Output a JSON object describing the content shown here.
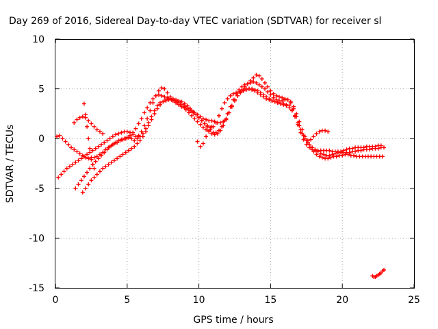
{
  "chart_data": {
    "type": "scatter",
    "title": "Day 269 of 2016, Sidereal Day-to-day VTEC variation (SDTVAR) for receiver sl",
    "xlabel": "GPS time / hours",
    "ylabel": "SDTVAR / TECUs",
    "xlim": [
      0,
      25
    ],
    "ylim": [
      -15,
      10
    ],
    "x_ticks": [
      "0",
      "5",
      "10",
      "15",
      "20",
      "25"
    ],
    "y_ticks": [
      "-15",
      "-10",
      "-5",
      "0",
      "5",
      "10"
    ],
    "grid": true,
    "marker": "plus",
    "color": "#ff0000",
    "series": [
      {
        "x": [
          0.1,
          0.3,
          0.5,
          0.7,
          0.9,
          1.1,
          1.3,
          1.5,
          1.7,
          1.9,
          2.1,
          2.3,
          2.5,
          2.7,
          2.9,
          3.1,
          3.3,
          3.5,
          3.7,
          3.9,
          4.1,
          4.3,
          4.5,
          4.7,
          4.9,
          5.1,
          5.3,
          5.5,
          5.7,
          5.9,
          6.1,
          6.3,
          6.5,
          6.7,
          6.9,
          7.1,
          7.3,
          7.5,
          7.7,
          7.9,
          8.1,
          8.3,
          8.5,
          8.7,
          8.9,
          9.1,
          9.3,
          9.5,
          9.7,
          9.9,
          10.1,
          10.3,
          10.5,
          10.7,
          10.9,
          11.1,
          11.3,
          11.5,
          11.7,
          11.9,
          12.1,
          12.3,
          12.5,
          12.7,
          12.9,
          13.1,
          13.3,
          13.5,
          13.7,
          13.9,
          14.1,
          14.3,
          14.5,
          14.7,
          14.9,
          15.1,
          15.3,
          15.5,
          15.7,
          15.9,
          16.1,
          16.3,
          16.5,
          16.7,
          16.9,
          17.1,
          17.3,
          17.5,
          17.7,
          17.9,
          18.1,
          18.3,
          18.5,
          18.7,
          18.9,
          19.1,
          19.3,
          19.5,
          19.7,
          19.9,
          20.1,
          20.3,
          20.5,
          20.7,
          20.9,
          21.1,
          21.3,
          21.5,
          21.7,
          21.9,
          22.1,
          22.3,
          22.5,
          22.7,
          22.9
        ],
        "y": [
          0.2,
          0.3,
          0.0,
          -0.3,
          -0.6,
          -0.9,
          -1.1,
          -1.3,
          -1.5,
          -1.7,
          -1.9,
          -2.0,
          -2.1,
          -1.9,
          -1.8,
          -1.6,
          -1.4,
          -1.1,
          -0.9,
          -0.7,
          -0.5,
          -0.4,
          -0.2,
          -0.1,
          0.0,
          0.1,
          0.0,
          -0.2,
          0.0,
          0.2,
          0.5,
          1.0,
          1.6,
          2.2,
          2.8,
          3.3,
          3.6,
          3.7,
          3.8,
          3.9,
          3.9,
          3.8,
          3.7,
          3.6,
          3.4,
          3.2,
          3.0,
          2.8,
          2.6,
          2.4,
          2.2,
          2.0,
          1.9,
          1.8,
          1.8,
          1.7,
          1.6,
          1.6,
          1.7,
          2.0,
          2.6,
          3.2,
          3.8,
          4.3,
          4.7,
          4.9,
          5.0,
          5.0,
          4.9,
          4.8,
          4.6,
          4.4,
          4.2,
          4.0,
          3.9,
          3.8,
          3.7,
          3.6,
          3.5,
          3.5,
          3.4,
          3.3,
          2.9,
          2.2,
          1.4,
          0.6,
          -0.1,
          -0.6,
          -0.9,
          -1.1,
          -1.2,
          -1.2,
          -1.2,
          -1.2,
          -1.2,
          -1.2,
          -1.3,
          -1.3,
          -1.3,
          -1.4,
          -1.4,
          -1.4,
          -1.4,
          -1.3,
          -1.3,
          -1.2,
          -1.2,
          -1.1,
          -1.1,
          -1.1,
          -1.0,
          -1.0,
          -1.0,
          -0.9,
          -0.9
        ]
      },
      {
        "x": [
          1.4,
          1.6,
          1.8,
          2.0,
          2.2,
          2.4,
          2.6,
          2.8,
          3.0,
          3.2,
          3.4,
          3.6,
          3.8,
          4.0,
          4.2,
          4.4,
          4.6,
          4.8,
          5.0,
          5.2,
          5.4,
          5.6,
          5.8,
          6.0,
          6.2,
          6.4,
          6.6,
          6.8,
          7.0,
          7.2,
          7.4,
          7.6,
          7.8,
          8.0,
          8.2,
          8.4,
          8.6,
          8.8,
          9.0,
          9.2,
          9.4,
          9.6,
          9.8,
          10.0,
          10.2,
          10.4,
          10.6,
          10.8,
          11.0,
          11.2,
          11.4,
          11.6,
          11.8,
          12.0,
          12.2,
          12.4,
          12.6,
          12.8,
          13.0,
          13.2,
          13.4,
          13.6,
          13.8,
          14.0,
          14.2,
          14.4,
          14.6,
          14.8,
          15.0,
          15.2,
          15.4,
          15.6,
          15.8,
          16.0,
          16.2,
          16.4,
          16.6,
          16.8,
          17.0,
          17.2,
          17.4,
          17.6,
          17.8,
          18.0,
          18.2,
          18.4,
          18.6,
          18.8,
          19.0,
          19.2,
          19.4,
          19.6,
          19.8,
          20.0,
          20.2,
          20.4,
          20.6,
          20.8,
          21.0,
          21.2,
          21.4,
          21.6,
          21.8,
          22.0,
          22.2,
          22.4,
          22.6,
          22.8
        ],
        "y": [
          -5.0,
          -4.6,
          -4.2,
          -3.8,
          -3.4,
          -3.0,
          -2.6,
          -2.3,
          -2.0,
          -1.7,
          -1.4,
          -1.1,
          -0.8,
          -0.6,
          -0.4,
          -0.2,
          -0.1,
          0.0,
          0.1,
          0.3,
          0.6,
          1.0,
          1.5,
          2.0,
          2.6,
          3.1,
          3.6,
          4.0,
          4.3,
          4.4,
          4.3,
          4.2,
          4.1,
          4.0,
          3.8,
          3.6,
          3.4,
          3.2,
          3.1,
          3.0,
          2.8,
          2.6,
          2.4,
          2.1,
          1.8,
          1.5,
          1.2,
          0.9,
          0.6,
          0.6,
          0.8,
          1.2,
          1.8,
          2.5,
          3.2,
          3.9,
          4.5,
          4.9,
          5.2,
          5.4,
          5.5,
          5.6,
          5.7,
          5.6,
          5.4,
          5.2,
          5.0,
          4.7,
          4.4,
          4.1,
          3.9,
          3.8,
          3.8,
          3.9,
          3.9,
          3.7,
          3.2,
          2.5,
          1.7,
          0.9,
          0.2,
          -0.4,
          -0.9,
          -1.3,
          -1.6,
          -1.8,
          -1.9,
          -2.0,
          -2.0,
          -1.9,
          -1.8,
          -1.8,
          -1.7,
          -1.7,
          -1.6,
          -1.6,
          -1.7,
          -1.7,
          -1.8,
          -1.8,
          -1.8,
          -1.8,
          -1.8,
          -1.8,
          -1.8,
          -1.8,
          -1.8,
          -1.8
        ]
      },
      {
        "x": [
          1.9,
          2.1,
          2.3,
          2.5,
          2.7,
          2.9,
          3.1,
          3.3,
          3.5,
          3.7,
          3.9,
          4.1,
          4.3,
          4.5,
          4.7,
          4.9,
          5.1,
          5.3,
          5.5,
          5.7,
          5.9,
          6.1,
          6.3,
          6.5,
          6.7,
          6.9,
          7.1,
          7.3,
          7.5,
          7.7,
          7.9,
          8.1,
          8.3,
          8.5,
          8.7,
          8.9,
          9.1,
          9.3,
          9.5,
          9.7,
          9.9,
          10.1,
          10.3,
          10.5,
          10.7,
          10.9,
          11.1,
          11.3,
          11.5,
          11.7,
          11.9,
          12.1,
          12.3,
          12.5,
          12.7,
          12.9,
          13.1,
          13.3,
          13.5,
          13.7,
          13.9,
          14.1,
          14.3,
          14.5,
          14.7,
          14.9,
          15.1,
          15.3,
          15.5,
          15.7,
          15.9,
          16.1,
          16.3,
          16.5,
          16.7,
          16.9,
          17.1,
          17.3,
          17.5,
          17.7,
          17.9,
          18.1,
          18.3,
          18.5,
          18.7,
          18.9,
          19.1,
          19.3,
          19.5,
          19.7,
          19.9,
          20.1,
          20.3,
          20.5,
          20.7,
          20.9,
          21.1,
          21.3,
          21.5,
          21.7,
          21.9,
          22.1,
          22.3,
          22.5,
          22.7
        ],
        "y": [
          -5.4,
          -5.0,
          -4.6,
          -4.2,
          -3.9,
          -3.6,
          -3.3,
          -3.0,
          -2.8,
          -2.6,
          -2.4,
          -2.2,
          -2.0,
          -1.8,
          -1.6,
          -1.4,
          -1.2,
          -1.0,
          -0.8,
          -0.5,
          -0.2,
          0.2,
          0.7,
          1.3,
          1.9,
          2.5,
          3.0,
          3.4,
          3.7,
          3.9,
          4.0,
          3.9,
          3.8,
          3.6,
          3.4,
          3.2,
          2.9,
          2.6,
          2.3,
          2.0,
          1.7,
          1.4,
          1.1,
          0.9,
          0.7,
          0.5,
          0.4,
          0.5,
          0.8,
          1.3,
          1.9,
          2.6,
          3.3,
          3.9,
          4.3,
          4.6,
          4.8,
          4.9,
          5.0,
          5.0,
          4.9,
          4.8,
          4.6,
          4.4,
          4.2,
          4.0,
          3.8,
          3.7,
          3.6,
          3.5,
          3.4,
          3.3,
          3.1,
          2.8,
          2.3,
          1.6,
          0.9,
          0.3,
          -0.2,
          -0.6,
          -0.9,
          -1.1,
          -1.3,
          -1.5,
          -1.6,
          -1.7,
          -1.7,
          -1.6,
          -1.5,
          -1.4,
          -1.3,
          -1.2,
          -1.1,
          -1.0,
          -1.0,
          -0.9,
          -0.9,
          -0.9,
          -0.9,
          -0.8,
          -0.8,
          -0.8,
          -0.8,
          -0.7,
          -0.7
        ]
      },
      {
        "x": [
          0.2,
          0.4,
          0.6,
          0.8,
          1.0,
          1.2,
          1.4,
          1.6,
          1.8,
          2.0,
          2.2,
          2.4,
          2.6,
          2.8,
          3.0,
          3.2,
          3.4,
          3.6,
          3.8,
          4.0,
          4.2,
          4.4,
          4.6,
          4.8,
          5.0,
          5.2,
          5.4,
          5.6,
          5.8,
          6.0,
          6.2,
          6.4,
          6.6,
          6.8,
          7.0,
          7.2,
          7.4,
          7.6,
          7.8,
          8.0,
          8.2,
          8.4,
          8.6,
          8.8,
          9.0,
          9.2,
          9.4,
          9.6,
          9.8,
          10.0,
          10.2,
          10.4,
          10.6,
          10.8,
          11.0,
          11.2,
          11.4,
          11.6,
          11.8,
          12.0,
          12.2,
          12.4,
          12.6,
          12.8,
          13.0,
          13.2,
          13.4,
          13.6,
          13.8,
          14.0,
          14.2,
          14.4,
          14.6,
          14.8,
          15.0,
          15.2,
          15.4,
          15.6,
          15.8,
          16.0,
          16.2,
          16.4,
          16.6,
          16.8,
          17.0,
          17.2,
          17.4,
          17.6,
          17.8,
          18.0,
          18.2,
          18.4,
          18.6,
          18.8,
          19.0
        ],
        "y": [
          -3.9,
          -3.6,
          -3.3,
          -3.0,
          -2.8,
          -2.6,
          -2.4,
          -2.2,
          -2.0,
          -1.8,
          -1.6,
          -1.4,
          -1.2,
          -1.0,
          -0.8,
          -0.6,
          -0.4,
          -0.2,
          0.0,
          0.2,
          0.4,
          0.5,
          0.6,
          0.7,
          0.7,
          0.6,
          0.4,
          0.2,
          0.3,
          0.7,
          1.3,
          2.0,
          2.8,
          3.6,
          4.3,
          4.8,
          5.1,
          5.0,
          4.6,
          4.2,
          4.0,
          3.9,
          3.8,
          3.7,
          3.5,
          3.3,
          3.0,
          2.7,
          2.4,
          2.1,
          1.8,
          1.5,
          1.3,
          1.1,
          1.2,
          1.6,
          2.3,
          3.0,
          3.6,
          4.0,
          4.3,
          4.5,
          4.6,
          4.7,
          4.9,
          5.2,
          5.5,
          5.8,
          6.1,
          6.4,
          6.3,
          6.0,
          5.6,
          5.2,
          4.8,
          4.5,
          4.3,
          4.2,
          4.1,
          4.0,
          3.9,
          3.6,
          3.0,
          2.2,
          1.3,
          0.5,
          0.0,
          -0.2,
          -0.1,
          0.2,
          0.5,
          0.7,
          0.8,
          0.8,
          0.7
        ]
      },
      {
        "x": [
          1.3,
          1.5,
          1.7,
          1.9,
          2.1,
          2.3,
          2.5,
          2.7,
          2.9,
          3.1,
          3.3
        ],
        "y": [
          1.6,
          1.9,
          2.1,
          2.2,
          2.1,
          1.8,
          1.5,
          1.2,
          0.9,
          0.7,
          0.5
        ]
      },
      {
        "x": [
          2.0,
          2.1,
          2.2,
          2.3,
          2.4,
          2.5,
          2.6,
          2.7
        ],
        "y": [
          3.5,
          2.4,
          1.2,
          0.0,
          -1.0,
          -1.9,
          -2.6,
          -3.0
        ]
      },
      {
        "x": [
          9.9,
          10.1,
          10.3,
          10.5,
          10.7,
          10.9
        ],
        "y": [
          -0.3,
          -0.8,
          -0.5,
          0.2,
          0.8,
          1.2
        ]
      },
      {
        "x": [
          22.1,
          22.2,
          22.3,
          22.4,
          22.5,
          22.6,
          22.7,
          22.8,
          22.9
        ],
        "y": [
          -13.8,
          -13.9,
          -13.9,
          -13.8,
          -13.7,
          -13.6,
          -13.5,
          -13.3,
          -13.2
        ]
      }
    ]
  }
}
